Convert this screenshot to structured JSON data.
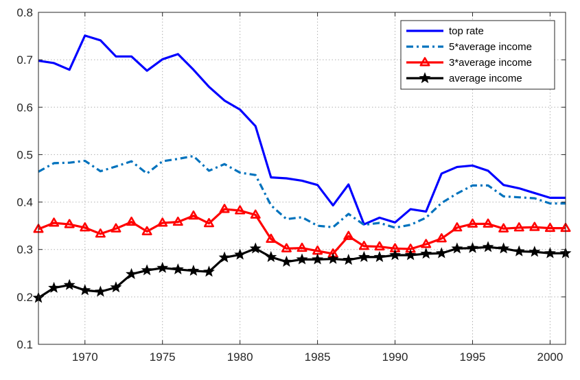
{
  "chart_data": {
    "type": "line",
    "x": [
      1967,
      1968,
      1969,
      1970,
      1971,
      1972,
      1973,
      1974,
      1975,
      1976,
      1977,
      1978,
      1979,
      1980,
      1981,
      1982,
      1983,
      1984,
      1985,
      1986,
      1987,
      1988,
      1989,
      1990,
      1991,
      1992,
      1993,
      1994,
      1995,
      1996,
      1997,
      1998,
      1999,
      2000,
      2001
    ],
    "xlim": [
      1967,
      2001
    ],
    "ylim": [
      0.1,
      0.8
    ],
    "xticks": [
      1970,
      1975,
      1980,
      1985,
      1990,
      1995,
      2000
    ],
    "yticks": [
      0.1,
      0.2,
      0.3,
      0.4,
      0.5,
      0.6,
      0.7,
      0.8
    ],
    "xtick_labels": [
      "1970",
      "1975",
      "1980",
      "1985",
      "1990",
      "1995",
      "2000"
    ],
    "ytick_labels": [
      "0.1",
      "0.2",
      "0.3",
      "0.4",
      "0.5",
      "0.6",
      "0.7",
      "0.8"
    ],
    "grid": true,
    "legend_position": "top-right",
    "series": [
      {
        "name": "top rate",
        "color": "#0000ff",
        "style": "solid",
        "marker": "none",
        "values": [
          0.698,
          0.693,
          0.679,
          0.751,
          0.741,
          0.707,
          0.707,
          0.677,
          0.701,
          0.712,
          0.679,
          0.643,
          0.614,
          0.595,
          0.56,
          0.452,
          0.45,
          0.445,
          0.436,
          0.393,
          0.437,
          0.353,
          0.367,
          0.357,
          0.385,
          0.38,
          0.46,
          0.474,
          0.477,
          0.466,
          0.436,
          0.429,
          0.419,
          0.409,
          0.409
        ]
      },
      {
        "name": "5*average income",
        "color": "#0072bd",
        "style": "dashdot",
        "marker": "none",
        "values": [
          0.464,
          0.482,
          0.483,
          0.487,
          0.465,
          0.475,
          0.486,
          0.46,
          0.486,
          0.491,
          0.497,
          0.466,
          0.48,
          0.462,
          0.457,
          0.393,
          0.364,
          0.368,
          0.35,
          0.347,
          0.375,
          0.352,
          0.356,
          0.346,
          0.352,
          0.367,
          0.398,
          0.418,
          0.435,
          0.435,
          0.412,
          0.41,
          0.408,
          0.397,
          0.397
        ]
      },
      {
        "name": "3*average income",
        "color": "#ff0000",
        "style": "solid",
        "marker": "triangle",
        "values": [
          0.343,
          0.356,
          0.353,
          0.346,
          0.333,
          0.344,
          0.358,
          0.338,
          0.356,
          0.358,
          0.371,
          0.355,
          0.385,
          0.382,
          0.373,
          0.322,
          0.302,
          0.303,
          0.297,
          0.291,
          0.328,
          0.307,
          0.306,
          0.302,
          0.301,
          0.311,
          0.323,
          0.346,
          0.354,
          0.354,
          0.344,
          0.346,
          0.347,
          0.345,
          0.345
        ]
      },
      {
        "name": "average income",
        "color": "#000000",
        "style": "solid",
        "marker": "star",
        "values": [
          0.198,
          0.219,
          0.225,
          0.214,
          0.211,
          0.22,
          0.248,
          0.256,
          0.261,
          0.258,
          0.255,
          0.253,
          0.283,
          0.289,
          0.302,
          0.284,
          0.274,
          0.279,
          0.279,
          0.28,
          0.278,
          0.284,
          0.284,
          0.288,
          0.288,
          0.291,
          0.292,
          0.302,
          0.303,
          0.305,
          0.302,
          0.296,
          0.295,
          0.292,
          0.292
        ]
      }
    ]
  }
}
